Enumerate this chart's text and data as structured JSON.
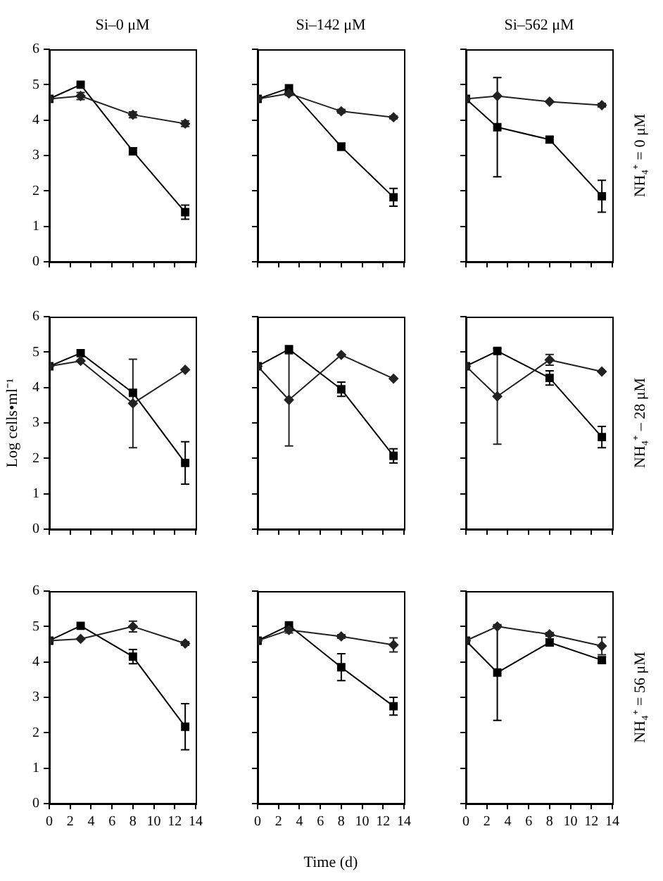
{
  "chart_data": [
    {
      "type": "line",
      "title": "Si–0 μM",
      "x": [
        0,
        3,
        8,
        13
      ],
      "xlim": [
        0,
        14
      ],
      "xticks": [
        0,
        2,
        4,
        6,
        8,
        10,
        12,
        14
      ],
      "ylim": [
        0,
        6
      ],
      "yticks": [
        0,
        1,
        2,
        3,
        4,
        5,
        6
      ],
      "grid": false,
      "legend": false,
      "tick_labels": "y",
      "series": [
        {
          "color": "#000000",
          "marker": "square",
          "values": [
            4.6,
            5.0,
            3.12,
            1.4
          ],
          "errors": [
            null,
            null,
            0.1,
            0.2
          ]
        },
        {
          "color": "#222222",
          "marker": "diamond",
          "values": [
            4.6,
            4.68,
            4.15,
            3.9
          ],
          "errors": [
            null,
            0.1,
            0.08,
            0.08
          ]
        }
      ]
    },
    {
      "type": "line",
      "title": "Si–142 μM",
      "x": [
        0,
        3,
        8,
        13
      ],
      "xlim": [
        0,
        14
      ],
      "xticks": [
        0,
        2,
        4,
        6,
        8,
        10,
        12,
        14
      ],
      "ylim": [
        0,
        6
      ],
      "yticks": [
        0,
        1,
        2,
        3,
        4,
        5,
        6
      ],
      "grid": false,
      "legend": false,
      "tick_labels": false,
      "series": [
        {
          "color": "#000000",
          "marker": "square",
          "values": [
            4.6,
            4.9,
            3.25,
            1.82
          ],
          "errors": [
            null,
            null,
            0.1,
            0.25
          ]
        },
        {
          "color": "#222222",
          "marker": "diamond",
          "values": [
            4.6,
            4.75,
            4.25,
            4.08
          ],
          "errors": [
            null,
            0.05,
            0.05,
            0.04
          ]
        }
      ]
    },
    {
      "type": "line",
      "title": "Si–562 μM",
      "annotations": [
        "NH₄⁺ = 0 μM"
      ],
      "x": [
        0,
        3,
        8,
        13
      ],
      "xlim": [
        0,
        14
      ],
      "xticks": [
        0,
        2,
        4,
        6,
        8,
        10,
        12,
        14
      ],
      "ylim": [
        0,
        6
      ],
      "yticks": [
        0,
        1,
        2,
        3,
        4,
        5,
        6
      ],
      "grid": false,
      "legend": false,
      "tick_labels": false,
      "series": [
        {
          "color": "#000000",
          "marker": "square",
          "values": [
            4.6,
            3.8,
            3.45,
            1.85
          ],
          "errors": [
            null,
            1.4,
            0.08,
            0.45
          ]
        },
        {
          "color": "#222222",
          "marker": "diamond",
          "values": [
            4.6,
            4.68,
            4.52,
            4.42
          ],
          "errors": [
            null,
            null,
            null,
            0.05
          ]
        }
      ]
    },
    {
      "type": "line",
      "ylabel": "Log cells•ml⁻¹",
      "x": [
        0,
        3,
        8,
        13
      ],
      "xlim": [
        0,
        14
      ],
      "xticks": [
        0,
        2,
        4,
        6,
        8,
        10,
        12,
        14
      ],
      "ylim": [
        0,
        6
      ],
      "yticks": [
        0,
        1,
        2,
        3,
        4,
        5,
        6
      ],
      "grid": false,
      "legend": false,
      "tick_labels": "y",
      "series": [
        {
          "color": "#000000",
          "marker": "square",
          "values": [
            4.6,
            4.97,
            3.85,
            1.87
          ],
          "errors": [
            null,
            null,
            null,
            0.6
          ]
        },
        {
          "color": "#222222",
          "marker": "diamond",
          "values": [
            4.6,
            4.75,
            3.55,
            4.5
          ],
          "errors": [
            null,
            null,
            1.25,
            null
          ]
        }
      ]
    },
    {
      "type": "line",
      "x": [
        0,
        3,
        8,
        13
      ],
      "xlim": [
        0,
        14
      ],
      "xticks": [
        0,
        2,
        4,
        6,
        8,
        10,
        12,
        14
      ],
      "ylim": [
        0,
        6
      ],
      "yticks": [
        0,
        1,
        2,
        3,
        4,
        5,
        6
      ],
      "grid": false,
      "legend": false,
      "tick_labels": false,
      "series": [
        {
          "color": "#000000",
          "marker": "square",
          "values": [
            4.6,
            5.08,
            3.95,
            2.07
          ],
          "errors": [
            null,
            null,
            0.2,
            0.2
          ]
        },
        {
          "color": "#222222",
          "marker": "diamond",
          "values": [
            4.6,
            3.65,
            4.92,
            4.25
          ],
          "errors": [
            null,
            1.3,
            null,
            null
          ]
        }
      ]
    },
    {
      "type": "line",
      "annotations": [
        "NH₄⁺ – 28 μM"
      ],
      "x": [
        0,
        3,
        8,
        13
      ],
      "xlim": [
        0,
        14
      ],
      "xticks": [
        0,
        2,
        4,
        6,
        8,
        10,
        12,
        14
      ],
      "ylim": [
        0,
        6
      ],
      "yticks": [
        0,
        1,
        2,
        3,
        4,
        5,
        6
      ],
      "grid": false,
      "legend": false,
      "tick_labels": false,
      "series": [
        {
          "color": "#000000",
          "marker": "square",
          "values": [
            4.6,
            5.03,
            4.27,
            2.6
          ],
          "errors": [
            null,
            null,
            0.2,
            0.3
          ]
        },
        {
          "color": "#222222",
          "marker": "diamond",
          "values": [
            4.6,
            3.75,
            4.78,
            4.45
          ],
          "errors": [
            null,
            1.35,
            0.15,
            null
          ]
        }
      ]
    },
    {
      "type": "line",
      "x": [
        0,
        3,
        8,
        13
      ],
      "xlim": [
        0,
        14
      ],
      "xticks": [
        0,
        2,
        4,
        6,
        8,
        10,
        12,
        14
      ],
      "ylim": [
        0,
        6
      ],
      "yticks": [
        0,
        1,
        2,
        3,
        4,
        5,
        6
      ],
      "grid": false,
      "legend": false,
      "series": [
        {
          "color": "#000000",
          "marker": "square",
          "values": [
            4.6,
            5.02,
            4.15,
            2.17
          ],
          "errors": [
            null,
            null,
            0.2,
            0.65
          ]
        },
        {
          "color": "#222222",
          "marker": "diamond",
          "values": [
            4.6,
            4.65,
            5.0,
            4.52
          ],
          "errors": [
            null,
            null,
            0.15,
            0.05
          ]
        }
      ]
    },
    {
      "type": "line",
      "xlabel": "Time (d)",
      "x": [
        0,
        3,
        8,
        13
      ],
      "xlim": [
        0,
        14
      ],
      "xticks": [
        0,
        2,
        4,
        6,
        8,
        10,
        12,
        14
      ],
      "ylim": [
        0,
        6
      ],
      "yticks": [
        0,
        1,
        2,
        3,
        4,
        5,
        6
      ],
      "grid": false,
      "legend": false,
      "tick_labels": "x",
      "series": [
        {
          "color": "#000000",
          "marker": "square",
          "values": [
            4.6,
            5.03,
            3.85,
            2.75
          ],
          "errors": [
            null,
            null,
            0.38,
            0.25
          ]
        },
        {
          "color": "#222222",
          "marker": "diamond",
          "values": [
            4.6,
            4.9,
            4.72,
            4.48
          ],
          "errors": [
            null,
            0.08,
            0.05,
            0.2
          ]
        }
      ]
    },
    {
      "type": "line",
      "annotations": [
        "NH₄⁺ = 56 μM"
      ],
      "x": [
        0,
        3,
        8,
        13
      ],
      "xlim": [
        0,
        14
      ],
      "xticks": [
        0,
        2,
        4,
        6,
        8,
        10,
        12,
        14
      ],
      "ylim": [
        0,
        6
      ],
      "yticks": [
        0,
        1,
        2,
        3,
        4,
        5,
        6
      ],
      "grid": false,
      "legend": false,
      "tick_labels": "x",
      "series": [
        {
          "color": "#000000",
          "marker": "square",
          "values": [
            4.6,
            3.7,
            4.55,
            4.05
          ],
          "errors": [
            null,
            1.35,
            0.1,
            0.08
          ]
        },
        {
          "color": "#222222",
          "marker": "diamond",
          "values": [
            4.6,
            5.0,
            4.78,
            4.45
          ],
          "errors": [
            null,
            null,
            0.05,
            0.25
          ]
        }
      ]
    }
  ]
}
